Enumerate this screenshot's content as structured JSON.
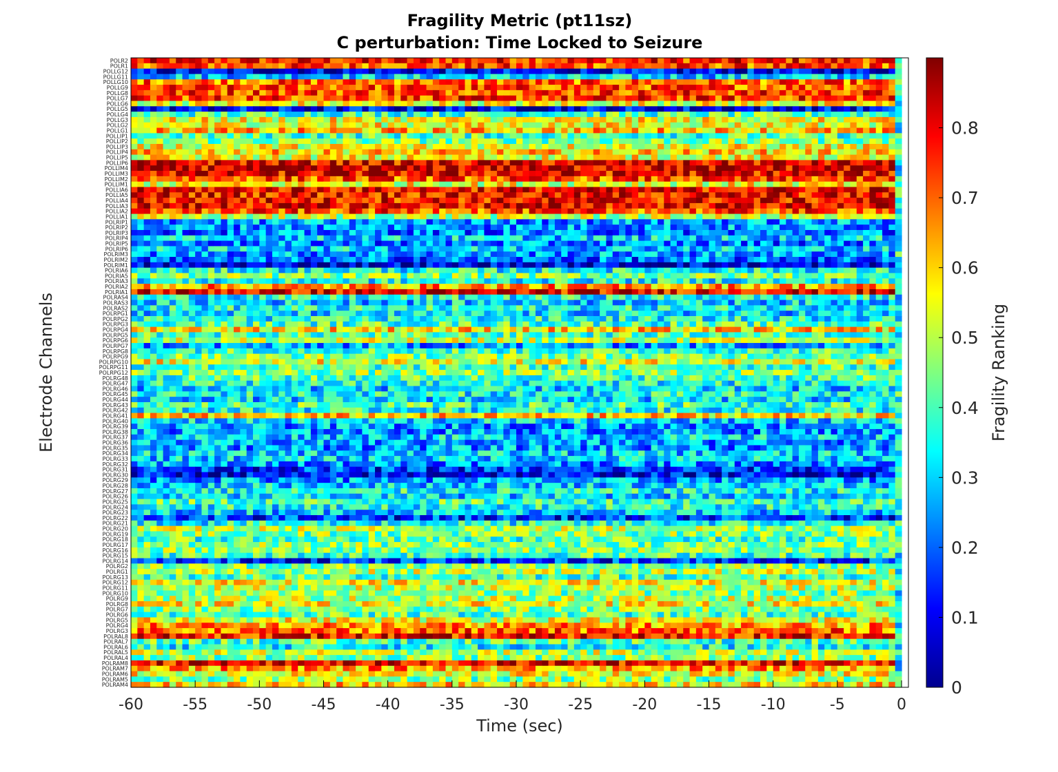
{
  "chart_data": {
    "type": "heatmap",
    "title": "Fragility Metric (pt11sz)",
    "subtitle": "C perturbation:  Time Locked to Seizure",
    "xlabel": "Time (sec)",
    "ylabel": "Electrode Channels",
    "colorbar_label": "Fragility Ranking",
    "colormap": "jet",
    "xlim": [
      -60,
      0
    ],
    "clim": [
      0,
      0.9
    ],
    "x_ticks": [
      -60,
      -55,
      -50,
      -45,
      -40,
      -35,
      -30,
      -25,
      -20,
      -15,
      -10,
      -5,
      0
    ],
    "colorbar_ticks": [
      0,
      0.1,
      0.2,
      0.3,
      0.4,
      0.5,
      0.6,
      0.7,
      0.8
    ],
    "n_time_windows": 120,
    "channels": [
      "POLR2",
      "POLR1",
      "POLLG12",
      "POLLG11",
      "POLLG10",
      "POLLG9",
      "POLLG8",
      "POLLG7",
      "POLLG6",
      "POLLG5",
      "POLLG4",
      "POLLG3",
      "POLLG2",
      "POLLG1",
      "POLLIP1",
      "POLLIP2",
      "POLLIP3",
      "POLLIP4",
      "POLLIP5",
      "POLLIP6",
      "POLLIM4",
      "POLLIM3",
      "POLLIM2",
      "POLLIM1",
      "POLLIA6",
      "POLLIA5",
      "POLLIA4",
      "POLLIA3",
      "POLLIA2",
      "POLLIA1",
      "POLRIP1",
      "POLRIP2",
      "POLRIP3",
      "POLRIP4",
      "POLRIP5",
      "POLRIP6",
      "POLRIM3",
      "POLRIM2",
      "POLRIM1",
      "POLRIA6",
      "POLRIA5",
      "POLRIA3",
      "POLRIA2",
      "POLRIA1",
      "POLRAS4",
      "POLRAS3",
      "POLRAS2",
      "POLRPG1",
      "POLRPG2",
      "POLRPG3",
      "POLRPG4",
      "POLRPG5",
      "POLRPG6",
      "POLRPG7",
      "POLRPG8",
      "POLRPG9",
      "POLRPG10",
      "POLRPG11",
      "POLRPG12",
      "POLRG48",
      "POLRG47",
      "POLRG46",
      "POLRG45",
      "POLRG44",
      "POLRG43",
      "POLRG42",
      "POLRG41",
      "POLRG40",
      "POLRG39",
      "POLRG38",
      "POLRG37",
      "POLRG36",
      "POLRG35",
      "POLRG34",
      "POLRG33",
      "POLRG32",
      "POLRG31",
      "POLRG30",
      "POLRG29",
      "POLRG28",
      "POLRG27",
      "POLRG26",
      "POLRG25",
      "POLRG24",
      "POLRG23",
      "POLRG22",
      "POLRG21",
      "POLRG20",
      "POLRG19",
      "POLRG18",
      "POLRG17",
      "POLRG16",
      "POLRG15",
      "POLRG14",
      "POLRG2",
      "POLRG1",
      "POLRG13",
      "POLRG12",
      "POLRG11",
      "POLRG10",
      "POLRG9",
      "POLRG8",
      "POLRG7",
      "POLRG6",
      "POLRG5",
      "POLRG4",
      "POLRG3",
      "POLRAL8",
      "POLRAL7",
      "POLRAL6",
      "POLRAL5",
      "POLRAL4",
      "POLRAM8",
      "POLRAM7",
      "POLRAM6",
      "POLRAM5",
      "POLRAM4"
    ],
    "channel_mean_fragility": [
      0.76,
      0.72,
      0.1,
      0.3,
      0.7,
      0.72,
      0.74,
      0.74,
      0.55,
      0.1,
      0.4,
      0.55,
      0.55,
      0.62,
      0.4,
      0.45,
      0.55,
      0.6,
      0.55,
      0.8,
      0.82,
      0.8,
      0.72,
      0.55,
      0.8,
      0.78,
      0.78,
      0.8,
      0.72,
      0.5,
      0.25,
      0.25,
      0.22,
      0.3,
      0.22,
      0.3,
      0.25,
      0.2,
      0.08,
      0.35,
      0.45,
      0.35,
      0.65,
      0.8,
      0.35,
      0.3,
      0.35,
      0.3,
      0.35,
      0.4,
      0.6,
      0.4,
      0.5,
      0.25,
      0.4,
      0.45,
      0.55,
      0.4,
      0.45,
      0.4,
      0.35,
      0.3,
      0.35,
      0.3,
      0.4,
      0.35,
      0.6,
      0.3,
      0.25,
      0.25,
      0.3,
      0.25,
      0.25,
      0.3,
      0.3,
      0.25,
      0.15,
      0.1,
      0.25,
      0.3,
      0.35,
      0.3,
      0.4,
      0.35,
      0.3,
      0.15,
      0.35,
      0.5,
      0.45,
      0.4,
      0.45,
      0.45,
      0.4,
      0.15,
      0.45,
      0.5,
      0.4,
      0.55,
      0.5,
      0.45,
      0.5,
      0.55,
      0.45,
      0.4,
      0.55,
      0.65,
      0.7,
      0.78,
      0.4,
      0.35,
      0.5,
      0.45,
      0.8,
      0.65,
      0.55,
      0.45,
      0.6
    ]
  }
}
